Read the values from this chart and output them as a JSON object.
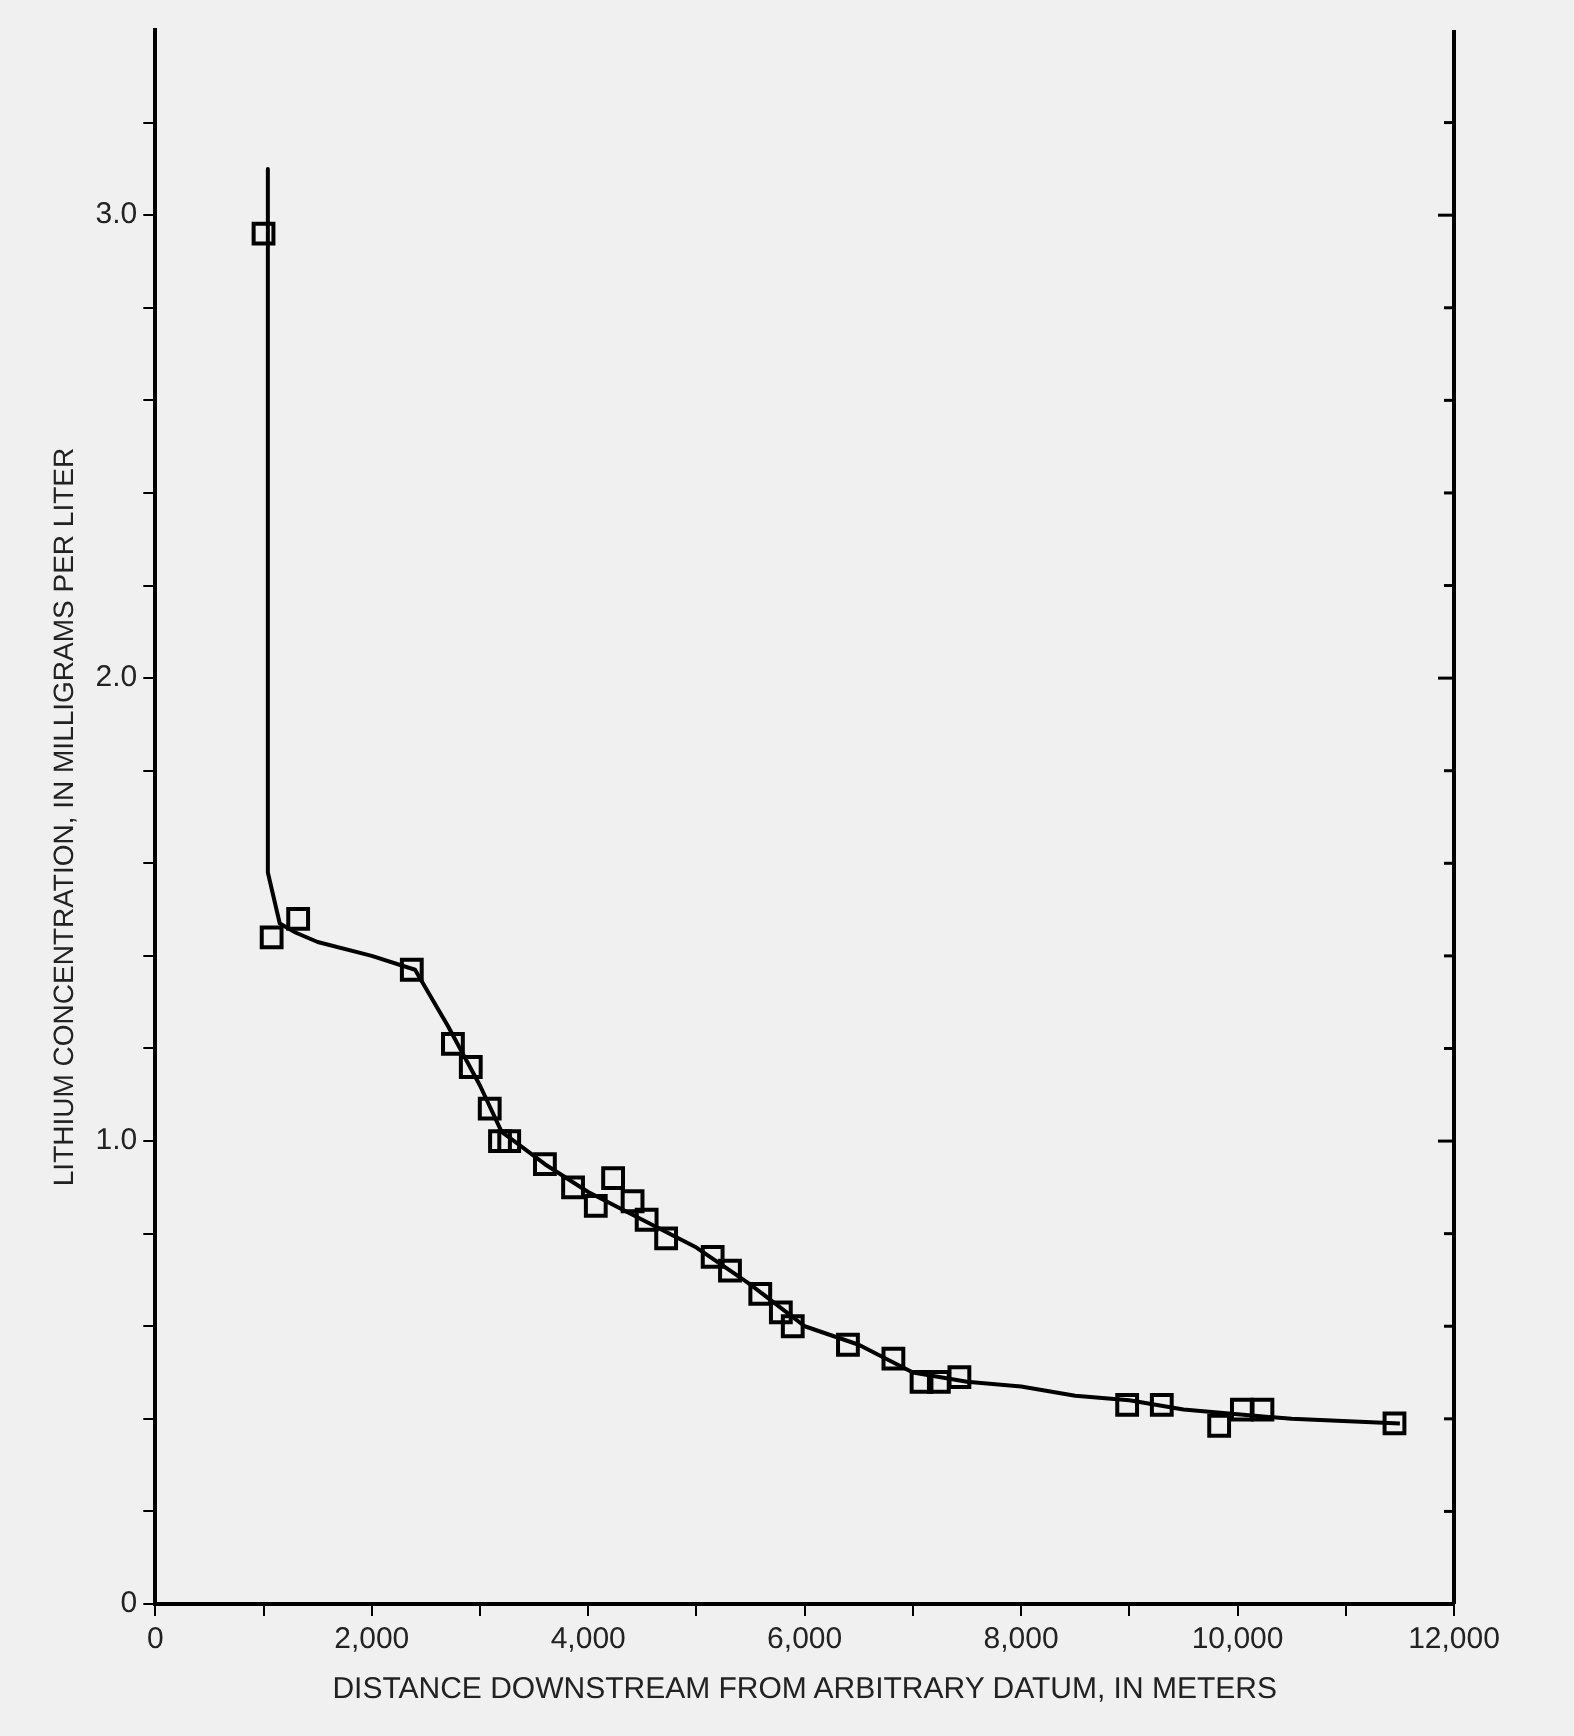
{
  "chart_data": {
    "type": "scatter",
    "xlabel": "DISTANCE DOWNSTREAM FROM ARBITRARY DATUM, IN METERS",
    "ylabel": "LITHIUM CONCENTRATION, IN MILLIGRAMS PER LITER",
    "xlim": [
      0,
      12000
    ],
    "ylim": [
      0,
      3.4
    ],
    "xticks": [
      0,
      {
        "value": 1000,
        "label": null
      },
      {
        "value": 2000,
        "label": "2,000"
      },
      {
        "value": 3000,
        "label": null
      },
      {
        "value": 4000,
        "label": "4,000"
      },
      {
        "value": 5000,
        "label": null
      },
      {
        "value": 6000,
        "label": "6,000"
      },
      {
        "value": 7000,
        "label": null
      },
      {
        "value": 8000,
        "label": "8,000"
      },
      {
        "value": 9000,
        "label": null
      },
      {
        "value": 10000,
        "label": "10,000"
      },
      {
        "value": 11000,
        "label": null
      },
      {
        "value": 12000,
        "label": "12,000"
      }
    ],
    "yticks": [
      0,
      {
        "value": 0.2,
        "label": null
      },
      {
        "value": 0.4,
        "label": null
      },
      {
        "value": 0.6,
        "label": null
      },
      {
        "value": 0.8,
        "label": null
      },
      {
        "value": 1,
        "label": "1.0"
      },
      {
        "value": 1.2,
        "label": null
      },
      {
        "value": 1.4,
        "label": null
      },
      {
        "value": 1.6,
        "label": null
      },
      {
        "value": 1.8,
        "label": null
      },
      {
        "value": 2,
        "label": "2.0"
      },
      {
        "value": 2.2,
        "label": null
      },
      {
        "value": 2.4,
        "label": null
      },
      {
        "value": 2.6,
        "label": null
      },
      {
        "value": 2.8,
        "label": null
      },
      {
        "value": 3,
        "label": "3.0"
      },
      {
        "value": 3.2,
        "label": null
      }
    ],
    "grid": false,
    "legend": false,
    "series": [
      {
        "type": "line",
        "color": "#000000",
        "line_style": "solid",
        "marker": "none",
        "x": [
          1040,
          1040,
          1150,
          1300,
          1500,
          2000,
          2400,
          2700,
          3000,
          3200,
          3600,
          4000,
          4500,
          5000,
          5500,
          6000,
          6500,
          7000,
          7500,
          8000,
          8500,
          9000,
          9500,
          10000,
          10500,
          11500
        ],
        "values": [
          3.1,
          1.58,
          1.47,
          1.45,
          1.43,
          1.4,
          1.37,
          1.25,
          1.12,
          1.02,
          0.95,
          0.89,
          0.83,
          0.77,
          0.69,
          0.6,
          0.56,
          0.5,
          0.48,
          0.47,
          0.45,
          0.44,
          0.42,
          0.41,
          0.4,
          0.39
        ]
      },
      {
        "type": "scatter",
        "color": "#000000",
        "marker": "square",
        "x": [
          1000,
          1075,
          1320,
          2370,
          2750,
          2915,
          3090,
          3185,
          3270,
          3600,
          3860,
          4070,
          4230,
          4410,
          4540,
          4720,
          5150,
          5310,
          5590,
          5780,
          5890,
          6400,
          6820,
          7080,
          7240,
          7430,
          8980,
          9300,
          9830,
          10040,
          10230,
          11450
        ],
        "values": [
          2.96,
          1.44,
          1.48,
          1.37,
          1.21,
          1.16,
          1.07,
          1.0,
          1.0,
          0.95,
          0.9,
          0.86,
          0.92,
          0.87,
          0.83,
          0.79,
          0.75,
          0.72,
          0.67,
          0.63,
          0.6,
          0.56,
          0.53,
          0.48,
          0.48,
          0.49,
          0.43,
          0.43,
          0.385,
          0.42,
          0.42,
          0.39
        ]
      }
    ]
  }
}
